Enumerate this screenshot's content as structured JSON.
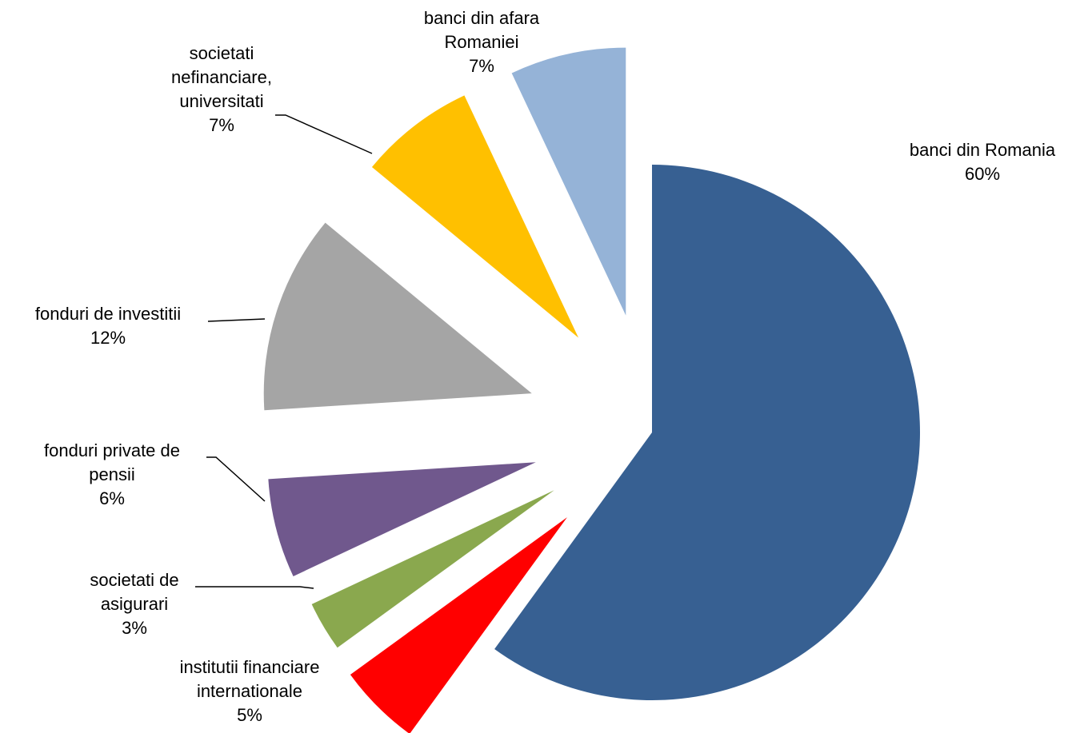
{
  "chart_data": {
    "type": "pie",
    "title": "",
    "legend": "none",
    "slices": [
      {
        "name": "banci din Romania",
        "value": 60,
        "label_lines": [
          "banci din Romania",
          "60%"
        ],
        "color": "#376092"
      },
      {
        "name": "institutii financiare internationale",
        "value": 5,
        "label_lines": [
          "institutii financiare",
          "internationale",
          "5%"
        ],
        "color": "#FF0000"
      },
      {
        "name": "societati de asigurari",
        "value": 3,
        "label_lines": [
          "societati de",
          "asigurari",
          "3%"
        ],
        "color": "#8AA84E"
      },
      {
        "name": "fonduri private de pensii",
        "value": 6,
        "label_lines": [
          "fonduri private de",
          "pensii",
          "6%"
        ],
        "color": "#70588D"
      },
      {
        "name": "fonduri de investitii",
        "value": 12,
        "label_lines": [
          "fonduri de investitii",
          "12%"
        ],
        "color": "#A5A5A5"
      },
      {
        "name": "societati nefinanciare, universitati",
        "value": 7,
        "label_lines": [
          "societati",
          "nefinanciare,",
          "universitati",
          "7%"
        ],
        "color": "#FFC000"
      },
      {
        "name": "banci din afara Romaniei",
        "value": 7,
        "label_lines": [
          "banci din afara",
          "Romaniei",
          "7%"
        ],
        "color": "#95B3D7"
      }
    ]
  }
}
